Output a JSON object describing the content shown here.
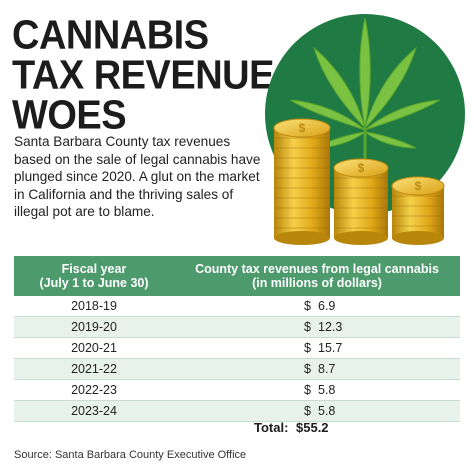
{
  "headline": [
    "CANNABIS",
    "TAX REVENUE",
    "WOES"
  ],
  "intro": "Santa Barbara County tax revenues based on the sale of legal cannabis have plunged since 2020. A glut on the market in California and the thriving sales of illegal pot are to blame.",
  "table": {
    "col1_title": "Fiscal year",
    "col1_sub": "(July 1 to  June 30)",
    "col2_title": "County tax revenues from legal cannabis",
    "col2_sub": "(in millions of dollars)",
    "currency": "$",
    "rows": [
      {
        "year": "2018-19",
        "value": "6.9"
      },
      {
        "year": "2019-20",
        "value": "12.3"
      },
      {
        "year": "2020-21",
        "value": "15.7"
      },
      {
        "year": "2021-22",
        "value": "8.7"
      },
      {
        "year": "2022-23",
        "value": "5.8"
      },
      {
        "year": "2023-24",
        "value": "5.8"
      }
    ],
    "total_label": "Total:",
    "total_value": "$55.2"
  },
  "source": "Source: Santa Barbara County Executive Office",
  "colors": {
    "header_green": "#4d9a6d",
    "row_tint": "#e8f2ec",
    "circle_green": "#1f7a43",
    "leaf_green": "#7cc242",
    "coin_gold": "#e8b91f"
  },
  "icons": [
    "cannabis-leaf-icon",
    "coin-stack-icon"
  ]
}
